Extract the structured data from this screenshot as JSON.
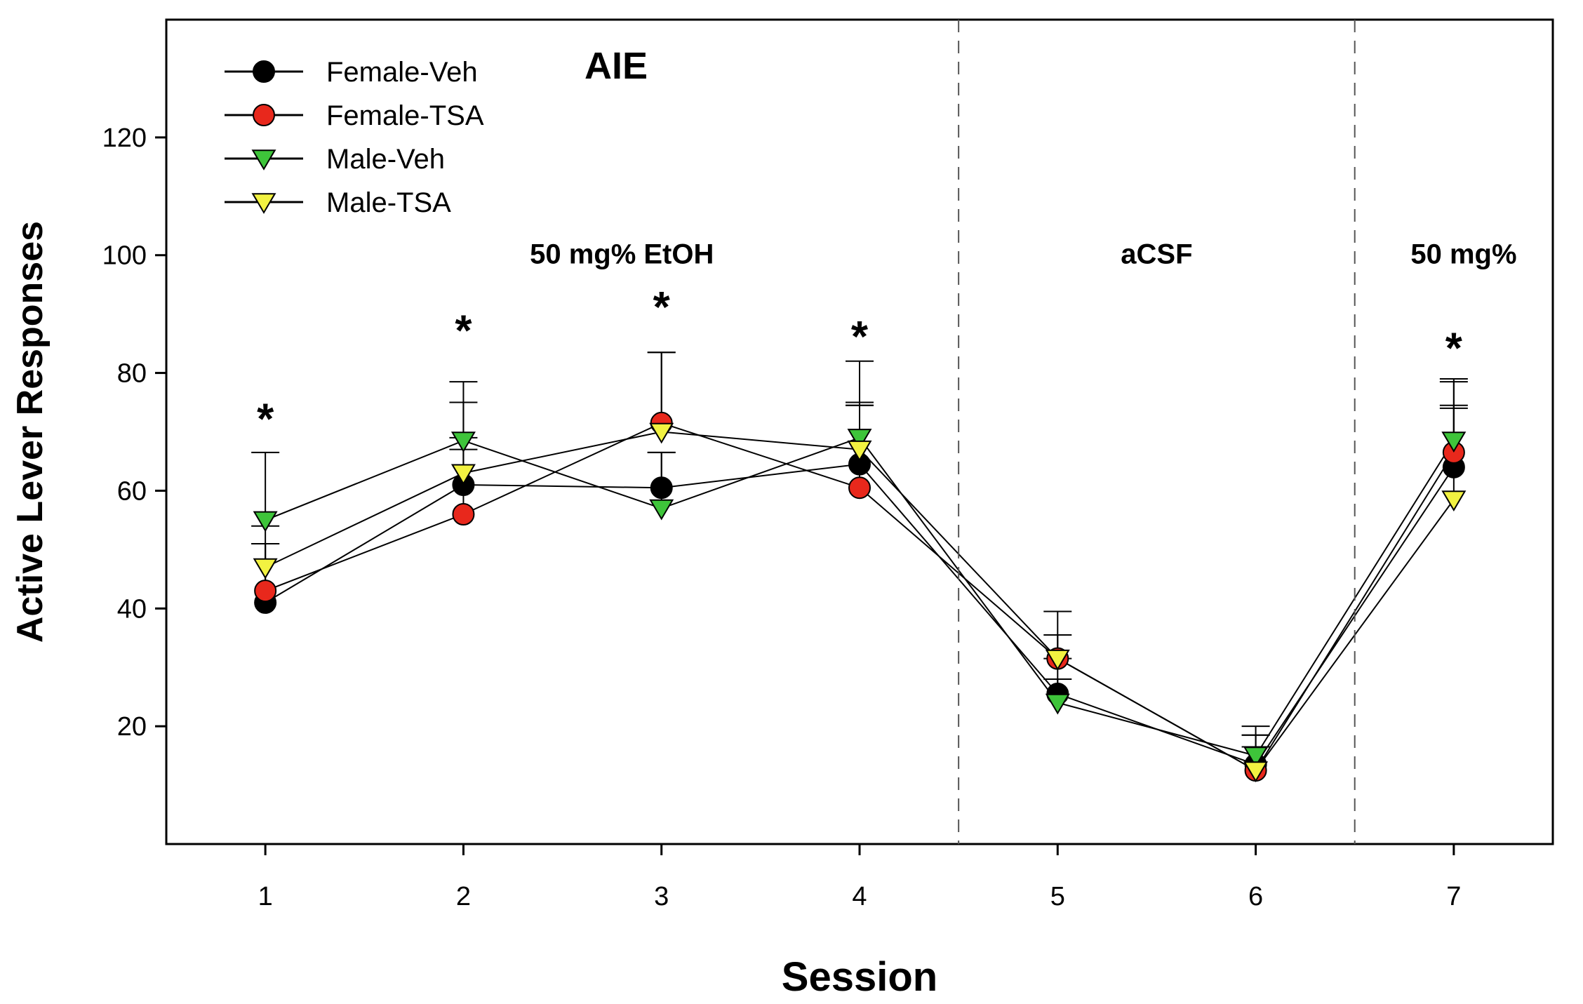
{
  "chart_data": {
    "type": "line",
    "title": "AIE",
    "xlabel": "Session",
    "ylabel": "Active Lever Responses",
    "xlim": [
      0.5,
      7.5
    ],
    "ylim": [
      0,
      140
    ],
    "x_ticks": [
      1,
      2,
      3,
      4,
      5,
      6,
      7
    ],
    "y_ticks": [
      20,
      40,
      60,
      80,
      100,
      120
    ],
    "grid": false,
    "legend_position": "top-left",
    "phase_dividers": [
      4.5,
      6.5
    ],
    "phases": [
      {
        "label": "50 mg% EtOH",
        "center": 2.8
      },
      {
        "label": "aCSF",
        "center": 5.5
      },
      {
        "label": "50 mg%",
        "center": 7.05
      }
    ],
    "significance": {
      "symbol": "*",
      "sessions": [
        1,
        2,
        3,
        4,
        7
      ],
      "y": [
        73,
        88,
        92,
        87,
        85
      ]
    },
    "series": [
      {
        "name": "Female-Veh",
        "marker": "circle",
        "color": "#000000",
        "x": [
          1,
          2,
          3,
          4,
          5,
          6,
          7
        ],
        "values": [
          41,
          61,
          60.5,
          64.5,
          25.5,
          13.5,
          64
        ],
        "error": [
          10,
          8,
          6,
          10,
          6,
          5,
          10
        ]
      },
      {
        "name": "Female-TSA",
        "marker": "circle",
        "color": "#e8281c",
        "x": [
          1,
          2,
          3,
          4,
          5,
          6,
          7
        ],
        "values": [
          43,
          56,
          71.5,
          60.5,
          31.5,
          12.5,
          66.5
        ],
        "error": [
          8,
          11,
          12,
          14,
          4,
          4,
          12
        ]
      },
      {
        "name": "Male-Veh",
        "marker": "triangle-down",
        "color": "#3ec43a",
        "x": [
          1,
          2,
          3,
          4,
          5,
          6,
          7
        ],
        "values": [
          55,
          68.5,
          57,
          69,
          24,
          15,
          68.5
        ],
        "error": [
          11.5,
          10,
          9.5,
          13,
          4,
          5,
          10.5
        ]
      },
      {
        "name": "Male-TSA",
        "marker": "triangle-down",
        "color": "#f2f241",
        "x": [
          1,
          2,
          3,
          4,
          5,
          6,
          7
        ],
        "values": [
          47,
          63,
          70,
          67,
          31.5,
          12.5,
          58.5
        ],
        "error": [
          7,
          12,
          13.5,
          8,
          8,
          6,
          16
        ]
      }
    ]
  }
}
